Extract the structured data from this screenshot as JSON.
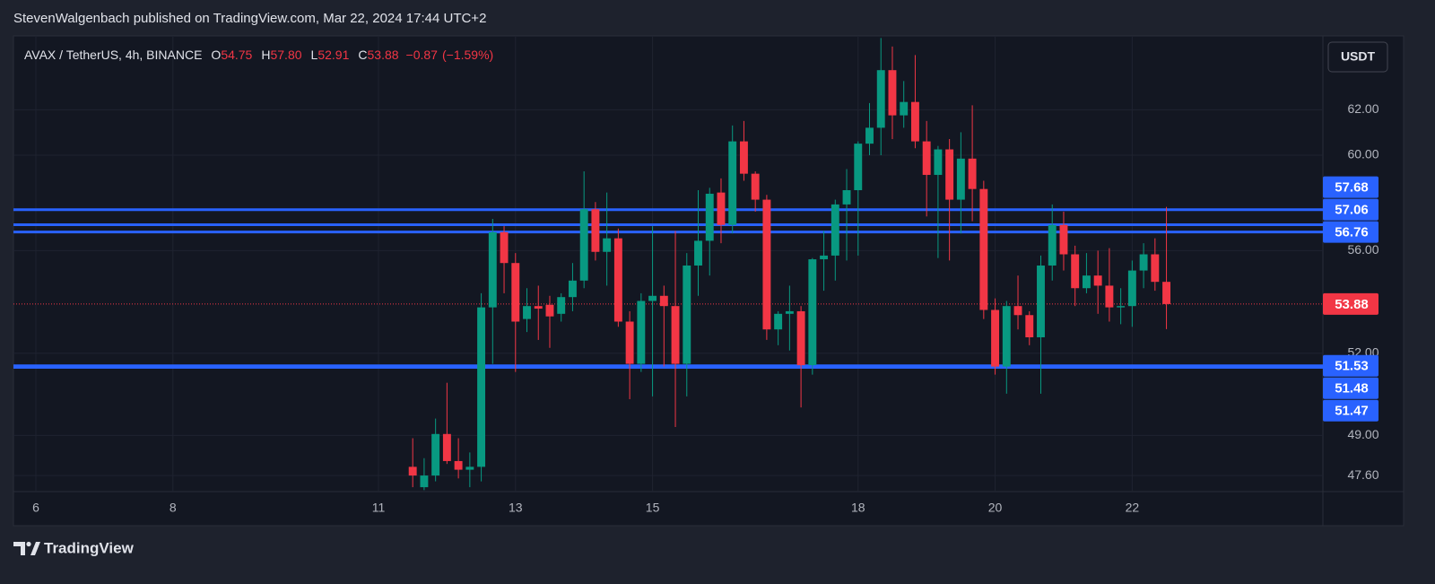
{
  "header": {
    "published": "StevenWalgenbach published on TradingView.com, Mar 22, 2024 17:44 UTC+2"
  },
  "footer": {
    "brand": "TradingView"
  },
  "chart_data": {
    "type": "candlestick",
    "symbol": "AVAX / TetherUS, 4h, BINANCE",
    "currency": "USDT",
    "legend_ohlc": [
      {
        "key": "O",
        "value": 54.75,
        "label": "54.75"
      },
      {
        "key": "H",
        "value": 57.8,
        "label": "57.80"
      },
      {
        "key": "L",
        "value": 52.91,
        "label": "52.91"
      },
      {
        "key": "C",
        "value": 53.88,
        "label": "53.88"
      }
    ],
    "change": {
      "value": -0.87,
      "label": "−0.87"
    },
    "change_pct": {
      "value": -1.59,
      "label": "(−1.59%)"
    },
    "up_color": "#089981",
    "down_color": "#f23645",
    "log_scale": true,
    "grid": true,
    "xlim": [
      -7.85,
      450.8
    ],
    "ylim": [
      47.05,
      65.4
    ],
    "xticks": [
      {
        "value": 0,
        "label": "6"
      },
      {
        "value": 48,
        "label": "8"
      },
      {
        "value": 120,
        "label": "11"
      },
      {
        "value": 168,
        "label": "13"
      },
      {
        "value": 216,
        "label": "15"
      },
      {
        "value": 288,
        "label": "18"
      },
      {
        "value": 336,
        "label": "20"
      },
      {
        "value": 384,
        "label": "22"
      }
    ],
    "yticks": [
      {
        "value": 47.6,
        "label": "47.60"
      },
      {
        "value": 49,
        "label": "49.00"
      },
      {
        "value": 52,
        "label": "52.00"
      },
      {
        "value": 56,
        "label": "56.00"
      },
      {
        "value": 60,
        "label": "60.00"
      },
      {
        "value": 62,
        "label": "62.00"
      }
    ],
    "x": [
      132,
      136,
      140,
      144,
      148,
      152,
      156,
      160,
      164,
      168,
      172,
      176,
      180,
      184,
      188,
      192,
      196,
      200,
      204,
      208,
      212,
      216,
      220,
      224,
      228,
      232,
      236,
      240,
      244,
      248,
      252,
      256,
      260,
      264,
      268,
      272,
      276,
      280,
      284,
      288,
      292,
      296,
      300,
      304,
      308,
      312,
      316,
      320,
      324,
      328,
      332,
      336,
      340,
      344,
      348,
      352,
      356,
      360,
      364,
      368,
      372,
      376,
      380,
      384,
      388,
      392,
      396
    ],
    "open": [
      47.9,
      47.2,
      47.6,
      49.05,
      48.1,
      47.8,
      47.9,
      53.75,
      56.75,
      55.5,
      53.3,
      53.8,
      53.85,
      53.5,
      54.15,
      54.8,
      57.7,
      55.95,
      56.5,
      53.2,
      51.6,
      54.0,
      54.2,
      53.8,
      51.6,
      55.4,
      56.4,
      58.4,
      57.05,
      60.6,
      59.2,
      58.1,
      52.9,
      53.5,
      53.6,
      51.55,
      55.65,
      55.8,
      57.9,
      58.5,
      60.5,
      61.2,
      63.8,
      61.75,
      62.35,
      60.6,
      59.15,
      60.25,
      58.1,
      59.85,
      58.55,
      53.65,
      51.5,
      53.8,
      53.45,
      52.6,
      55.4,
      57.05,
      55.85,
      54.5,
      55.0,
      54.6,
      53.75,
      53.8,
      55.2,
      55.85,
      54.75
    ],
    "high": [
      48.9,
      48.2,
      49.6,
      50.9,
      48.9,
      48.4,
      54.3,
      57.3,
      57.0,
      55.9,
      54.5,
      54.6,
      54.2,
      54.3,
      55.5,
      59.3,
      58.0,
      58.4,
      56.9,
      53.6,
      54.3,
      57.0,
      54.6,
      56.8,
      55.9,
      58.5,
      58.6,
      59.0,
      61.3,
      61.5,
      59.3,
      58.3,
      53.6,
      54.6,
      53.8,
      55.7,
      56.8,
      58.1,
      59.4,
      60.6,
      62.3,
      65.3,
      64.9,
      63.3,
      64.5,
      61.5,
      60.4,
      60.7,
      61.0,
      62.2,
      58.9,
      54.1,
      54.0,
      55.0,
      53.6,
      55.8,
      57.9,
      57.6,
      56.2,
      55.9,
      56.0,
      56.1,
      54.5,
      55.6,
      56.3,
      56.5,
      57.8
    ],
    "low": [
      47.2,
      47.1,
      47.4,
      48.0,
      47.5,
      47.2,
      47.4,
      51.6,
      54.3,
      51.3,
      52.8,
      52.5,
      52.2,
      53.2,
      53.6,
      54.5,
      55.6,
      54.6,
      53.0,
      50.3,
      51.3,
      50.4,
      51.5,
      49.3,
      50.4,
      54.2,
      55.0,
      56.3,
      56.7,
      58.9,
      57.6,
      52.5,
      52.3,
      52.1,
      50.0,
      51.2,
      54.4,
      54.8,
      55.6,
      55.8,
      60.0,
      60.0,
      60.7,
      61.2,
      60.3,
      57.4,
      55.7,
      55.6,
      56.7,
      57.2,
      53.3,
      51.2,
      50.5,
      52.9,
      52.3,
      50.5,
      54.8,
      55.2,
      53.8,
      54.3,
      53.5,
      53.2,
      53.1,
      53.0,
      54.5,
      54.4,
      52.91
    ],
    "close": [
      47.6,
      47.6,
      49.05,
      48.1,
      47.8,
      47.9,
      53.75,
      56.75,
      55.5,
      53.2,
      53.8,
      53.7,
      53.4,
      54.15,
      54.8,
      57.7,
      55.95,
      56.5,
      53.2,
      51.6,
      54.0,
      54.2,
      53.8,
      51.6,
      55.4,
      56.4,
      58.35,
      57.05,
      60.6,
      59.2,
      58.1,
      52.9,
      53.5,
      53.6,
      51.55,
      55.65,
      55.8,
      57.9,
      58.5,
      60.5,
      61.2,
      63.8,
      61.75,
      62.35,
      60.6,
      59.15,
      60.25,
      58.1,
      59.85,
      58.55,
      53.65,
      51.5,
      53.8,
      53.45,
      52.6,
      55.4,
      57.05,
      55.85,
      54.5,
      55.0,
      54.6,
      53.75,
      53.8,
      55.2,
      55.85,
      54.75,
      53.88
    ],
    "price_lines": [
      {
        "value": 57.68,
        "label": "57.68",
        "color": "#2962ff"
      },
      {
        "value": 57.06,
        "label": "57.06",
        "color": "#2962ff"
      },
      {
        "value": 56.76,
        "label": "56.76",
        "color": "#2962ff"
      },
      {
        "value": 51.53,
        "label": "51.53",
        "color": "#2962ff"
      },
      {
        "value": 51.48,
        "label": "51.48",
        "color": "#2962ff"
      },
      {
        "value": 51.47,
        "label": "51.47",
        "color": "#2962ff"
      }
    ],
    "last_price": {
      "value": 53.88,
      "label": "53.88",
      "color": "#f23645"
    }
  }
}
